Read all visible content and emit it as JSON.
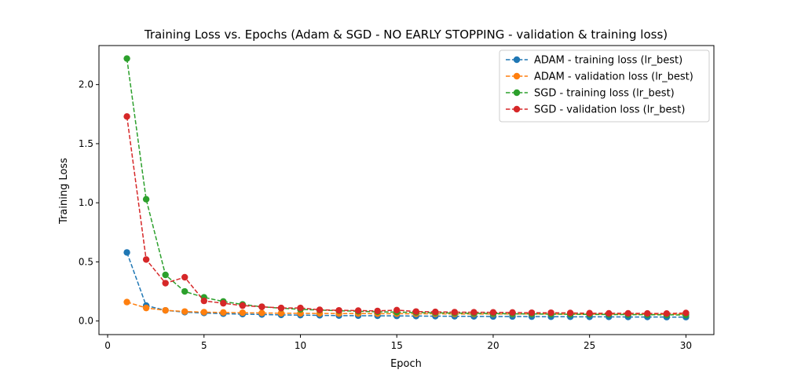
{
  "chart_data": {
    "type": "line",
    "title": "Training Loss vs. Epochs (Adam & SGD - NO EARLY STOPPING - validation & training loss)",
    "xlabel": "Epoch",
    "ylabel": "Training Loss",
    "xlim": [
      -0.45,
      31.45
    ],
    "ylim": [
      -0.115,
      2.33
    ],
    "xticks": [
      0,
      5,
      10,
      15,
      20,
      25,
      30
    ],
    "yticks": [
      0.0,
      0.5,
      1.0,
      1.5,
      2.0
    ],
    "xtick_labels": [
      "0",
      "5",
      "10",
      "15",
      "20",
      "25",
      "30"
    ],
    "ytick_labels": [
      "0.0",
      "0.5",
      "1.0",
      "1.5",
      "2.0"
    ],
    "legend_position": "top-right",
    "grid": false,
    "x": [
      1,
      2,
      3,
      4,
      5,
      6,
      7,
      8,
      9,
      10,
      11,
      12,
      13,
      14,
      15,
      16,
      17,
      18,
      19,
      20,
      21,
      22,
      23,
      24,
      25,
      26,
      27,
      28,
      29,
      30
    ],
    "series": [
      {
        "name": "ADAM - training loss (lr_best)",
        "color": "#1f77b4",
        "values": [
          0.58,
          0.13,
          0.09,
          0.075,
          0.068,
          0.062,
          0.058,
          0.055,
          0.052,
          0.05,
          0.048,
          0.046,
          0.045,
          0.044,
          0.043,
          0.042,
          0.041,
          0.04,
          0.039,
          0.038,
          0.038,
          0.037,
          0.036,
          0.036,
          0.035,
          0.035,
          0.034,
          0.034,
          0.033,
          0.033
        ]
      },
      {
        "name": "ADAM - validation loss (lr_best)",
        "color": "#ff7f0e",
        "values": [
          0.16,
          0.11,
          0.09,
          0.08,
          0.075,
          0.072,
          0.07,
          0.068,
          0.066,
          0.065,
          0.064,
          0.063,
          0.063,
          0.062,
          0.062,
          0.061,
          0.061,
          0.06,
          0.06,
          0.06,
          0.059,
          0.059,
          0.059,
          0.058,
          0.058,
          0.058,
          0.058,
          0.057,
          0.057,
          0.057
        ]
      },
      {
        "name": "SGD - training loss (lr_best)",
        "color": "#2ca02c",
        "values": [
          2.22,
          1.03,
          0.39,
          0.25,
          0.2,
          0.165,
          0.14,
          0.12,
          0.108,
          0.098,
          0.092,
          0.087,
          0.082,
          0.078,
          0.075,
          0.072,
          0.069,
          0.067,
          0.065,
          0.063,
          0.061,
          0.06,
          0.058,
          0.057,
          0.056,
          0.055,
          0.054,
          0.053,
          0.052,
          0.051
        ]
      },
      {
        "name": "SGD - validation loss (lr_best)",
        "color": "#d62728",
        "values": [
          1.73,
          0.52,
          0.32,
          0.37,
          0.17,
          0.15,
          0.13,
          0.12,
          0.11,
          0.11,
          0.095,
          0.09,
          0.088,
          0.085,
          0.092,
          0.08,
          0.077,
          0.075,
          0.074,
          0.073,
          0.072,
          0.07,
          0.07,
          0.068,
          0.066,
          0.065,
          0.065,
          0.064,
          0.063,
          0.068
        ]
      }
    ]
  }
}
